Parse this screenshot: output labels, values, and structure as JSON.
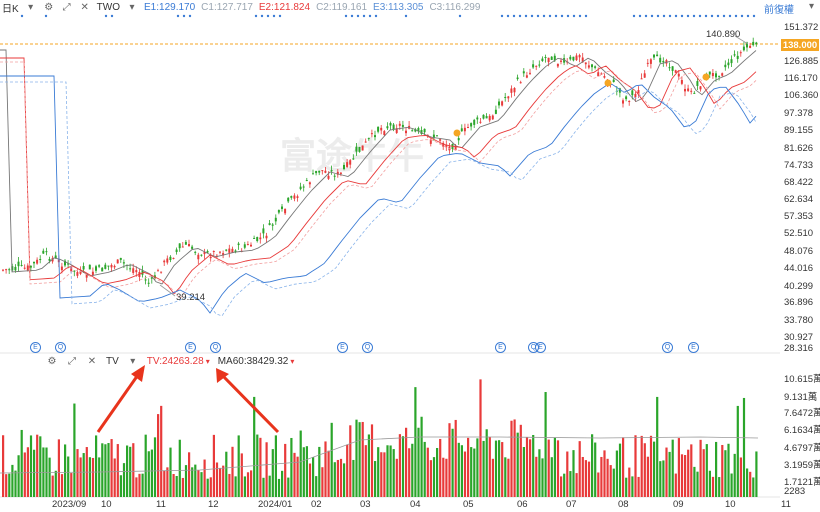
{
  "toolbar": {
    "interval": "日K",
    "symbol": "TWO",
    "e1": "E1:129.170",
    "c1": "C1:127.717",
    "e2": "E2:121.824",
    "c2": "C2:119.161",
    "e3": "E3:113.305",
    "c3": "C3:116.299",
    "adjust": "前復權"
  },
  "price_axis": [
    "151.372",
    "138.000",
    "126.885",
    "116.170",
    "106.360",
    "97.378",
    "89.155",
    "81.626",
    "74.733",
    "68.422",
    "62.634",
    "57.353",
    "52.510",
    "48.076",
    "44.016",
    "40.299",
    "36.896",
    "33.780",
    "30.927",
    "28.316"
  ],
  "last_price": "138.000",
  "high_label": "140.890",
  "low_label": "39.214",
  "volume_bar": {
    "indicator": "TV",
    "tv": "TV:24263.28",
    "ma60": "MA60:38429.32"
  },
  "volume_axis": [
    "10.615萬",
    "9.131萬",
    "7.6472萬",
    "6.1634萬",
    "4.6797萬",
    "3.1959萬",
    "1.7121萬",
    "2283"
  ],
  "x_axis": [
    "2023/09",
    "10",
    "11",
    "12",
    "2024/01",
    "02",
    "03",
    "04",
    "05",
    "06",
    "07",
    "08",
    "09",
    "10",
    "11"
  ],
  "event_marks": [
    "E",
    "Q",
    "E",
    "Q",
    "E",
    "Q",
    "E",
    "Q",
    "E",
    "Q",
    "E",
    "Q"
  ],
  "watermark": "富途牛牛",
  "colors": {
    "up": "#e83a3a",
    "down": "#2aa52a",
    "ma_orange": "#f5a623",
    "dash": "#f5a623"
  }
}
